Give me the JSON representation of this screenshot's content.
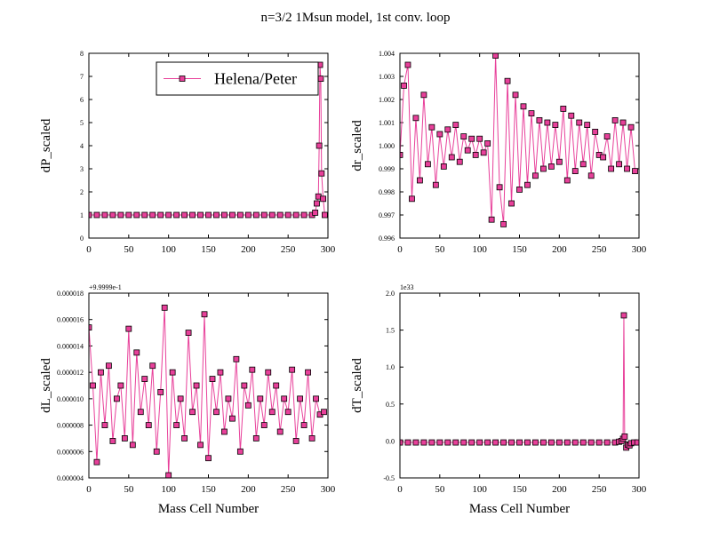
{
  "title": "n=3/2 1Msun model, 1st conv. loop",
  "chart_data": [
    {
      "type": "line",
      "ylabel": "dP_scaled",
      "legend": "upper right",
      "xlim": [
        0,
        300
      ],
      "xticks": [
        0,
        50,
        100,
        150,
        200,
        250,
        300
      ],
      "ylim": [
        0,
        8
      ],
      "yticks": [
        0,
        1,
        2,
        3,
        4,
        5,
        6,
        7,
        8
      ],
      "x": [
        0,
        10,
        20,
        30,
        40,
        50,
        60,
        70,
        80,
        90,
        100,
        110,
        120,
        130,
        140,
        150,
        160,
        170,
        180,
        190,
        200,
        210,
        220,
        230,
        240,
        250,
        260,
        270,
        280,
        284,
        286,
        288,
        289,
        290,
        291,
        292,
        294,
        296
      ],
      "series": [
        {
          "name": "Helena/Peter",
          "color": "#e8409a",
          "values": [
            1,
            1,
            1,
            1,
            1,
            1,
            1,
            1,
            1,
            1,
            1,
            1,
            1,
            1,
            1,
            1,
            1,
            1,
            1,
            1,
            1,
            1,
            1,
            1,
            1,
            1,
            1,
            1,
            1,
            1.1,
            1.5,
            1.8,
            4.0,
            7.5,
            6.9,
            2.8,
            1.7,
            1.0
          ]
        }
      ]
    },
    {
      "type": "line",
      "ylabel": "dr_scaled",
      "xlim": [
        0,
        300
      ],
      "xticks": [
        0,
        50,
        100,
        150,
        200,
        250,
        300
      ],
      "ylim": [
        0.996,
        1.004
      ],
      "yticks": [
        {
          "value": 0.996,
          "label": "0.996"
        },
        {
          "value": 0.997,
          "label": "0.997"
        },
        {
          "value": 0.998,
          "label": "0.998"
        },
        {
          "value": 0.999,
          "label": "0.999"
        },
        {
          "value": 1.0,
          "label": "1.000"
        },
        {
          "value": 1.001,
          "label": "1.001"
        },
        {
          "value": 1.002,
          "label": "1.002"
        },
        {
          "value": 1.003,
          "label": "1.003"
        },
        {
          "value": 1.004,
          "label": "1.004"
        }
      ],
      "x": [
        0,
        5,
        10,
        15,
        20,
        25,
        30,
        35,
        40,
        45,
        50,
        55,
        60,
        65,
        70,
        75,
        80,
        85,
        90,
        95,
        100,
        105,
        110,
        115,
        120,
        125,
        130,
        135,
        140,
        145,
        150,
        155,
        160,
        165,
        170,
        175,
        180,
        185,
        190,
        195,
        200,
        205,
        210,
        215,
        220,
        225,
        230,
        235,
        240,
        245,
        250,
        255,
        260,
        265,
        270,
        275,
        280,
        285,
        290,
        295
      ],
      "series": [
        {
          "name": "Helena/Peter",
          "color": "#e8409a",
          "values": [
            0.9996,
            1.0026,
            1.0035,
            0.9977,
            1.0012,
            0.9985,
            1.0022,
            0.9992,
            1.0008,
            0.9983,
            1.0005,
            0.9991,
            1.0007,
            0.9995,
            1.0009,
            0.9993,
            1.0004,
            0.9998,
            1.0003,
            0.9996,
            1.0003,
            0.9997,
            1.0001,
            0.9968,
            1.0039,
            0.9982,
            0.9966,
            1.0028,
            0.9975,
            1.0022,
            0.9981,
            1.0017,
            0.9983,
            1.0014,
            0.9987,
            1.0011,
            0.999,
            1.001,
            0.9991,
            1.0009,
            0.9993,
            1.0016,
            0.9985,
            1.0013,
            0.9989,
            1.001,
            0.9992,
            1.0009,
            0.9987,
            1.0006,
            0.9996,
            0.9995,
            1.0004,
            0.999,
            1.0011,
            0.9992,
            1.001,
            0.999,
            1.0008,
            0.9989
          ]
        }
      ]
    },
    {
      "type": "line",
      "ylabel": "dL_scaled",
      "xlabel": "Mass Cell Number",
      "offset_label": "+9.9999e-1",
      "xlim": [
        0,
        300
      ],
      "xticks": [
        0,
        50,
        100,
        150,
        200,
        250,
        300
      ],
      "ylim": [
        4e-06,
        1.8e-05
      ],
      "yticks": [
        {
          "value": 4e-06,
          "label": "0.000004"
        },
        {
          "value": 6e-06,
          "label": "0.000006"
        },
        {
          "value": 8e-06,
          "label": "0.000008"
        },
        {
          "value": 1e-05,
          "label": "0.000010"
        },
        {
          "value": 1.2e-05,
          "label": "0.000012"
        },
        {
          "value": 1.4e-05,
          "label": "0.000014"
        },
        {
          "value": 1.6e-05,
          "label": "0.000016"
        },
        {
          "value": 1.8e-05,
          "label": "0.000018"
        }
      ],
      "x": [
        0,
        5,
        10,
        15,
        20,
        25,
        30,
        35,
        40,
        45,
        50,
        55,
        60,
        65,
        70,
        75,
        80,
        85,
        90,
        95,
        100,
        105,
        110,
        115,
        120,
        125,
        130,
        135,
        140,
        145,
        150,
        155,
        160,
        165,
        170,
        175,
        180,
        185,
        190,
        195,
        200,
        205,
        210,
        215,
        220,
        225,
        230,
        235,
        240,
        245,
        250,
        255,
        260,
        265,
        270,
        275,
        280,
        285,
        290,
        295
      ],
      "series": [
        {
          "name": "Helena/Peter",
          "color": "#e8409a",
          "values": [
            1.54e-05,
            1.1e-05,
            5.2e-06,
            1.2e-05,
            8e-06,
            1.25e-05,
            6.8e-06,
            1e-05,
            1.1e-05,
            7e-06,
            1.53e-05,
            6.5e-06,
            1.35e-05,
            9e-06,
            1.15e-05,
            8e-06,
            1.25e-05,
            6e-06,
            1.05e-05,
            1.69e-05,
            4.2e-06,
            1.2e-05,
            8e-06,
            1e-05,
            7e-06,
            1.5e-05,
            9e-06,
            1.1e-05,
            6.5e-06,
            1.64e-05,
            5.5e-06,
            1.15e-05,
            9e-06,
            1.2e-05,
            7.5e-06,
            1e-05,
            8.5e-06,
            1.3e-05,
            6e-06,
            1.1e-05,
            9.5e-06,
            1.22e-05,
            7e-06,
            1e-05,
            8e-06,
            1.2e-05,
            9e-06,
            1.1e-05,
            7.5e-06,
            1e-05,
            9e-06,
            1.22e-05,
            6.8e-06,
            1e-05,
            8e-06,
            1.2e-05,
            7e-06,
            1e-05,
            8.8e-06,
            9e-06
          ]
        }
      ]
    },
    {
      "type": "line",
      "ylabel": "dT_scaled",
      "xlabel": "Mass Cell Number",
      "offset_label": "1e33",
      "xlim": [
        0,
        300
      ],
      "xticks": [
        0,
        50,
        100,
        150,
        200,
        250,
        300
      ],
      "ylim": [
        -0.5,
        2.0
      ],
      "yticks": [
        {
          "value": -0.5,
          "label": "-0.5"
        },
        {
          "value": 0,
          "label": "0.0"
        },
        {
          "value": 0.5,
          "label": "0.5"
        },
        {
          "value": 1,
          "label": "1.0"
        },
        {
          "value": 1.5,
          "label": "1.5"
        },
        {
          "value": 2,
          "label": "2.0"
        }
      ],
      "x": [
        0,
        10,
        20,
        30,
        40,
        50,
        60,
        70,
        80,
        90,
        100,
        110,
        120,
        130,
        140,
        150,
        160,
        170,
        180,
        190,
        200,
        210,
        220,
        230,
        240,
        250,
        260,
        270,
        275,
        278,
        280,
        281,
        282,
        284,
        286,
        288,
        290,
        294,
        298
      ],
      "series": [
        {
          "name": "Helena/Peter",
          "color": "#e8409a",
          "values": [
            -0.02,
            -0.02,
            -0.02,
            -0.02,
            -0.02,
            -0.02,
            -0.02,
            -0.02,
            -0.02,
            -0.02,
            -0.02,
            -0.02,
            -0.02,
            -0.02,
            -0.02,
            -0.02,
            -0.02,
            -0.02,
            -0.02,
            -0.02,
            -0.02,
            -0.02,
            -0.02,
            -0.02,
            -0.02,
            -0.02,
            -0.02,
            -0.02,
            -0.01,
            0.0,
            0.03,
            1.7,
            0.06,
            -0.09,
            -0.05,
            -0.06,
            -0.03,
            -0.02,
            -0.02
          ]
        }
      ]
    }
  ]
}
